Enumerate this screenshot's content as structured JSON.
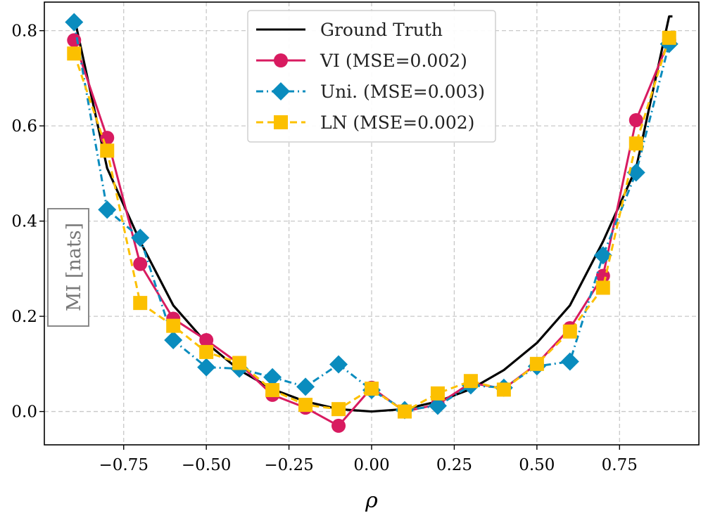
{
  "chart_data": {
    "type": "line",
    "xlabel": "ρ",
    "ylabel": "MI [nats]",
    "xlim": [
      -0.99,
      0.99
    ],
    "ylim": [
      -0.07,
      0.86
    ],
    "xticks": [
      -0.75,
      -0.5,
      -0.25,
      0.0,
      0.25,
      0.5,
      0.75
    ],
    "xtick_labels": [
      "−0.75",
      "−0.50",
      "−0.25",
      "0.00",
      "0.25",
      "0.50",
      "0.75"
    ],
    "yticks": [
      0.0,
      0.2,
      0.4,
      0.6,
      0.8
    ],
    "ytick_labels": [
      "0.0",
      "0.2",
      "0.4",
      "0.6",
      "0.8"
    ],
    "grid": true,
    "legend_position": "top-center",
    "colors": {
      "ground_truth": "#000000",
      "vi": "#d81b60",
      "uni": "#0a8cbe",
      "ln": "#fcc000"
    },
    "x": [
      -0.9,
      -0.8,
      -0.7,
      -0.6,
      -0.5,
      -0.4,
      -0.3,
      -0.2,
      -0.1,
      0.0,
      0.1,
      0.2,
      0.3,
      0.4,
      0.5,
      0.6,
      0.7,
      0.8,
      0.9
    ],
    "series": [
      {
        "name": "Ground Truth",
        "key": "ground_truth",
        "marker": "none",
        "dash": "solid",
        "x": [
          -0.9,
          -0.8,
          -0.7,
          -0.6,
          -0.5,
          -0.4,
          -0.3,
          -0.2,
          -0.1,
          0.0,
          0.1,
          0.2,
          0.3,
          0.4,
          0.5,
          0.6,
          0.7,
          0.8,
          0.9,
          0.91
        ],
        "values": [
          0.83,
          0.511,
          0.357,
          0.223,
          0.144,
          0.087,
          0.047,
          0.021,
          0.005,
          0.0,
          0.005,
          0.021,
          0.047,
          0.087,
          0.144,
          0.223,
          0.357,
          0.511,
          0.83,
          0.83
        ]
      },
      {
        "name": "VI (MSE=0.002)",
        "key": "vi",
        "marker": "circle",
        "dash": "solid",
        "values": [
          0.78,
          0.575,
          0.31,
          0.195,
          0.15,
          0.1,
          0.035,
          0.008,
          -0.03,
          0.05,
          0.0,
          0.015,
          0.06,
          0.048,
          0.1,
          0.175,
          0.285,
          0.612,
          0.78
        ]
      },
      {
        "name": "Uni. (MSE=0.003)",
        "key": "uni",
        "marker": "diamond",
        "dash": "dashdot",
        "values": [
          0.818,
          0.424,
          0.365,
          0.15,
          0.093,
          0.09,
          0.072,
          0.052,
          0.099,
          0.045,
          0.003,
          0.012,
          0.055,
          0.05,
          0.095,
          0.105,
          0.328,
          0.502,
          0.772
        ]
      },
      {
        "name": "LN (MSE=0.002)",
        "key": "ln",
        "marker": "square",
        "dash": "dashed",
        "values": [
          0.752,
          0.548,
          0.228,
          0.18,
          0.125,
          0.102,
          0.045,
          0.014,
          0.005,
          0.048,
          0.0,
          0.038,
          0.064,
          0.046,
          0.1,
          0.168,
          0.26,
          0.563,
          0.785
        ]
      }
    ]
  }
}
